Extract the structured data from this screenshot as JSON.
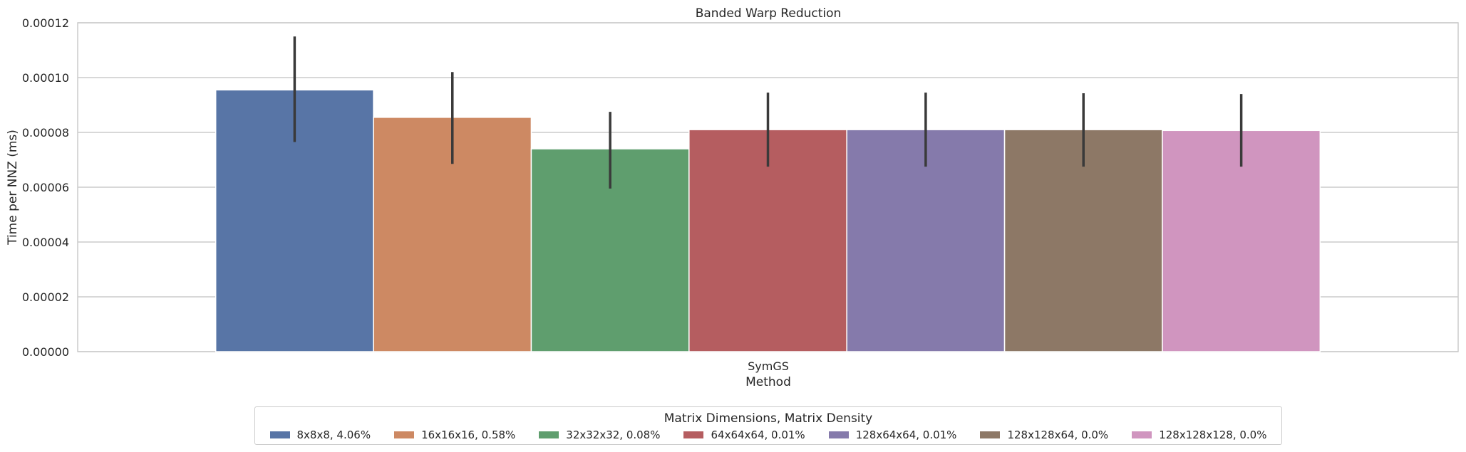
{
  "chart_data": {
    "type": "bar",
    "title": "Banded Warp Reduction",
    "xlabel": "Method",
    "ylabel": "Time per NNZ (ms)",
    "categories": [
      "SymGS"
    ],
    "ylim": [
      0,
      0.00012
    ],
    "yticks": [
      "0.00000",
      "0.00002",
      "0.00004",
      "0.00006",
      "0.00008",
      "0.00010",
      "0.00012"
    ],
    "ytick_values": [
      0,
      2e-05,
      4e-05,
      6e-05,
      8e-05,
      0.0001,
      0.00012
    ],
    "grid": true,
    "legend_title": "Matrix Dimensions, Matrix Density",
    "legend_placement": "bottom-center",
    "series": [
      {
        "name": "8x8x8, 4.06%",
        "values": [
          9.55e-05
        ],
        "err_low": [
          7.65e-05
        ],
        "err_high": [
          0.000115
        ],
        "color": "#5875a6"
      },
      {
        "name": "16x16x16, 0.58%",
        "values": [
          8.55e-05
        ],
        "err_low": [
          6.85e-05
        ],
        "err_high": [
          0.000102
        ],
        "color": "#cd8963"
      },
      {
        "name": "32x32x32, 0.08%",
        "values": [
          7.4e-05
        ],
        "err_low": [
          5.95e-05
        ],
        "err_high": [
          8.75e-05
        ],
        "color": "#5f9e6e"
      },
      {
        "name": "64x64x64, 0.01%",
        "values": [
          8.1e-05
        ],
        "err_low": [
          6.75e-05
        ],
        "err_high": [
          9.45e-05
        ],
        "color": "#b55d60"
      },
      {
        "name": "128x64x64, 0.01%",
        "values": [
          8.1e-05
        ],
        "err_low": [
          6.75e-05
        ],
        "err_high": [
          9.45e-05
        ],
        "color": "#857aab"
      },
      {
        "name": "128x128x64, 0.0%",
        "values": [
          8.1e-05
        ],
        "err_low": [
          6.75e-05
        ],
        "err_high": [
          9.43e-05
        ],
        "color": "#8d7866"
      },
      {
        "name": "128x128x128, 0.0%",
        "values": [
          8.07e-05
        ],
        "err_low": [
          6.75e-05
        ],
        "err_high": [
          9.4e-05
        ],
        "color": "#d095bf"
      }
    ]
  }
}
